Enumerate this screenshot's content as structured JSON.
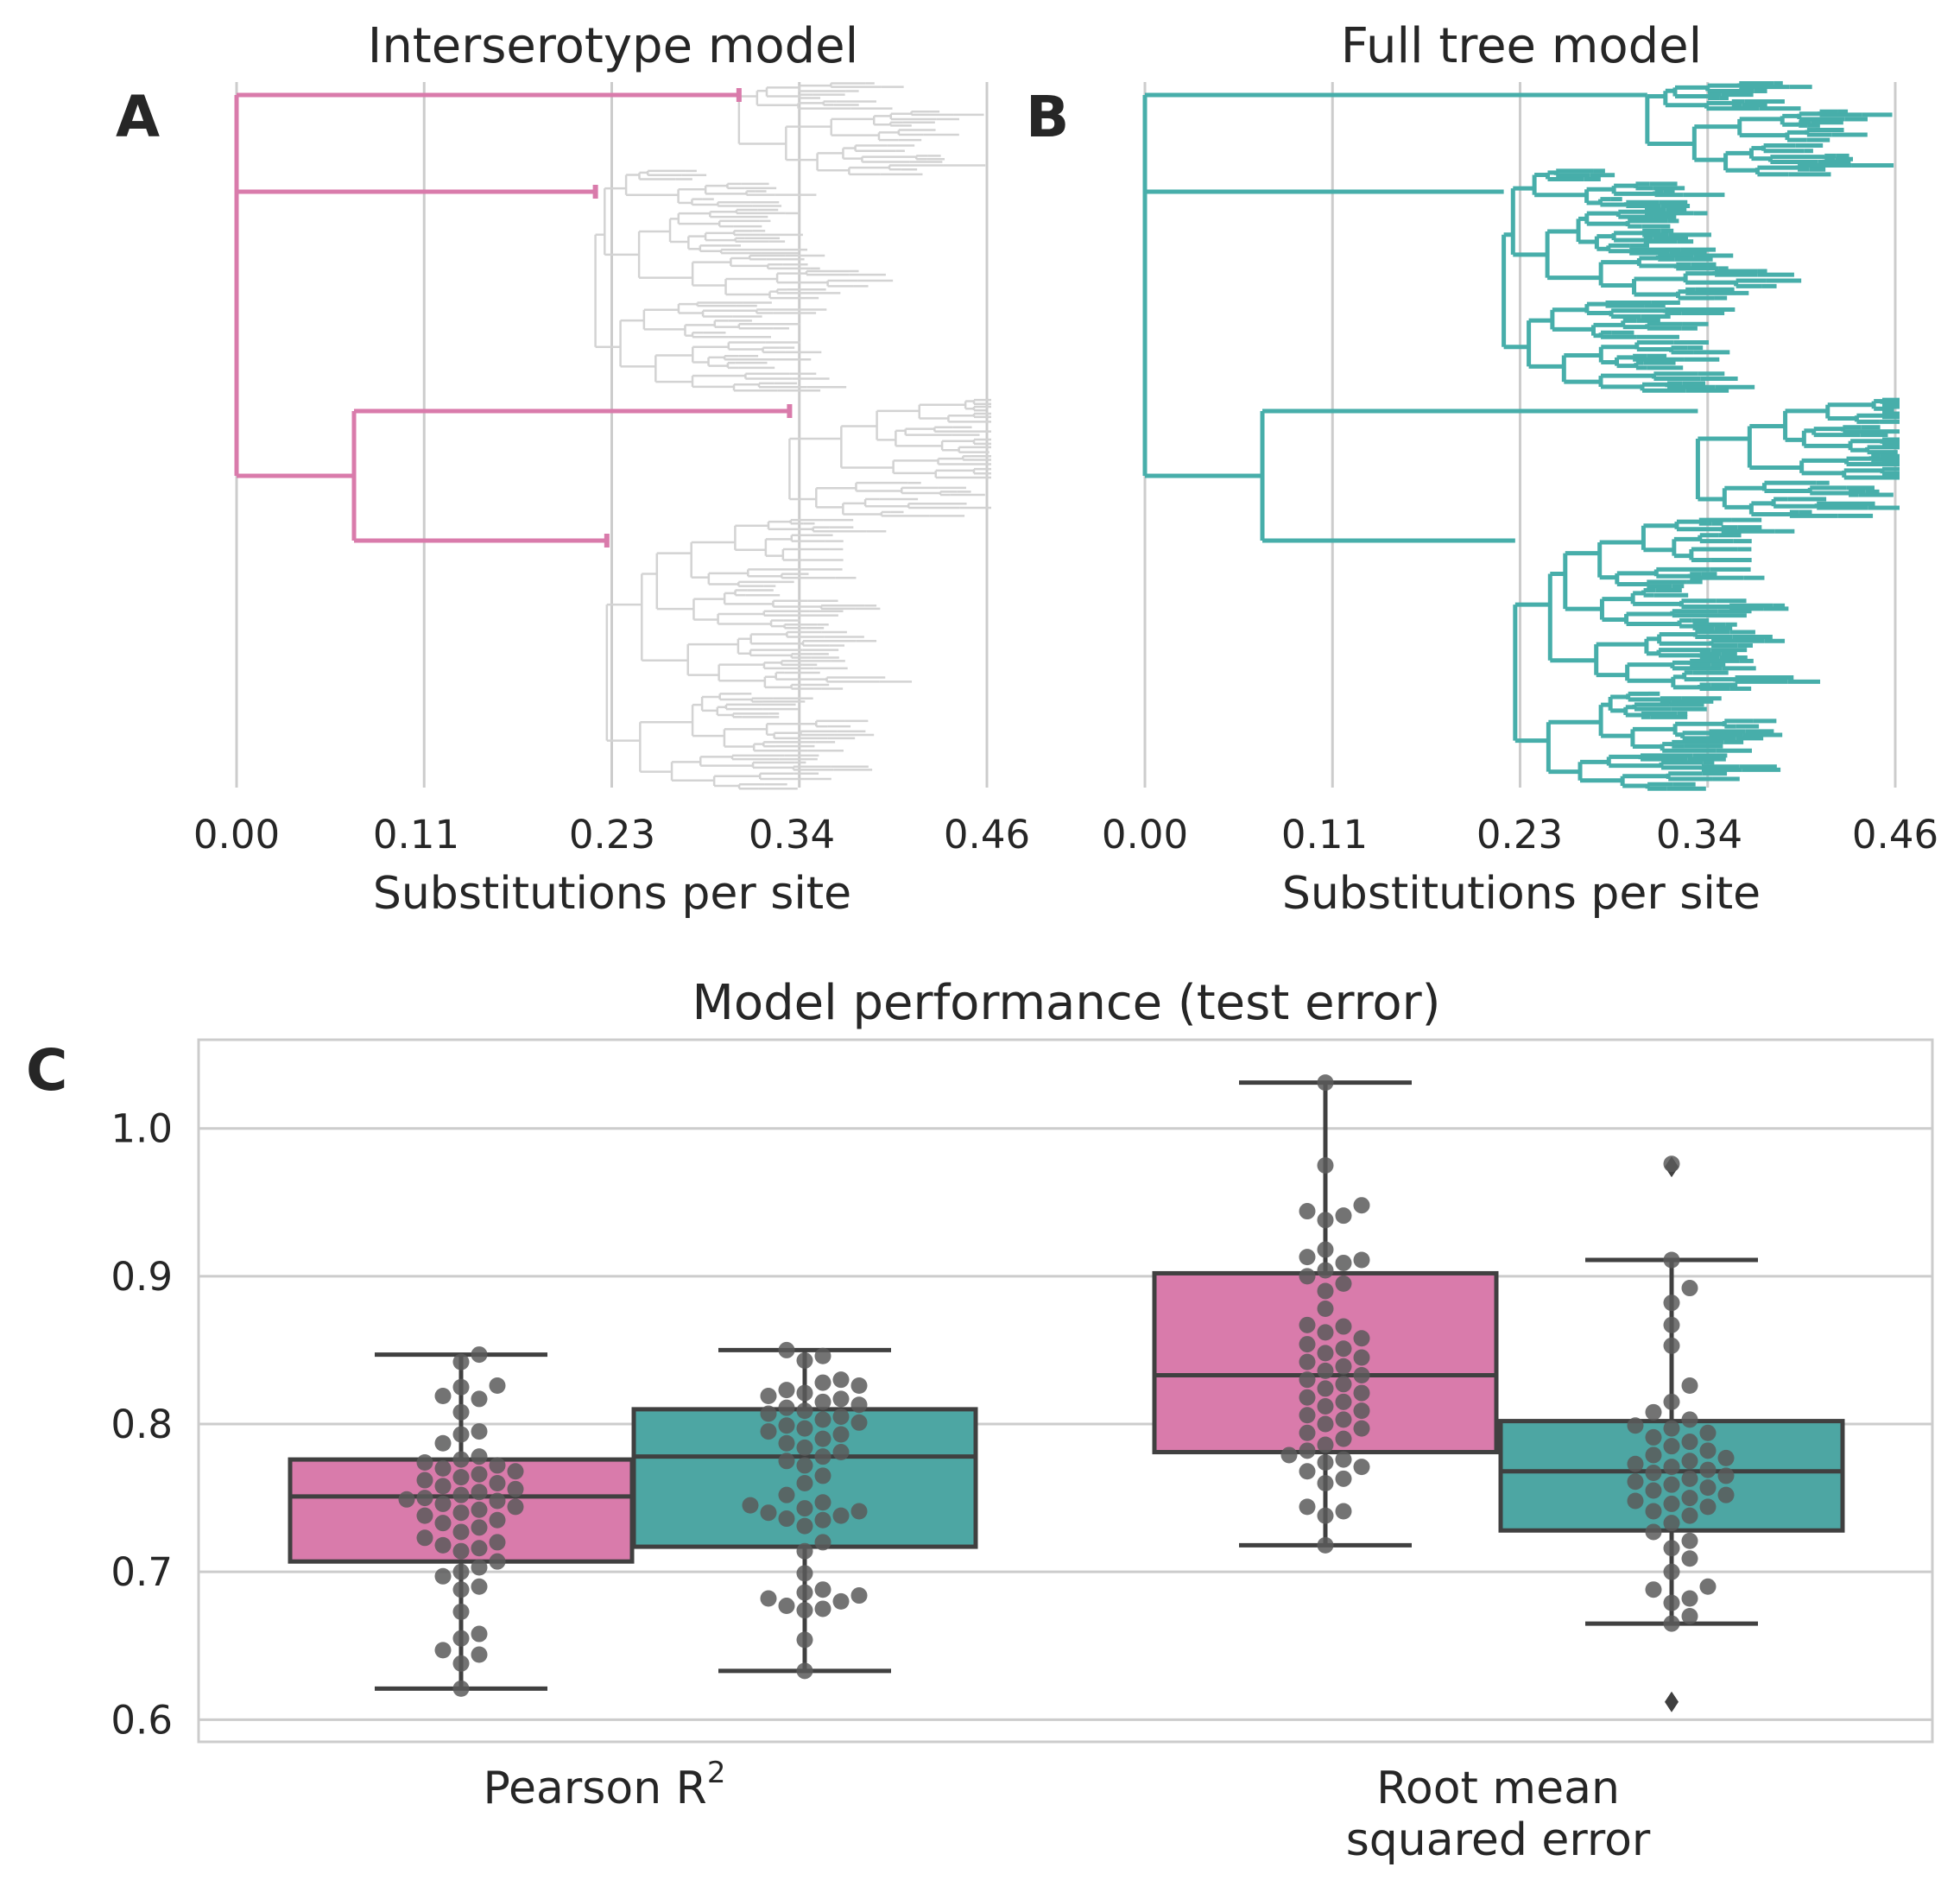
{
  "colors": {
    "interserotype": "#d97bab",
    "full_tree": "#47aeaa",
    "box_full_tree": "#4da6a3",
    "gray_tree": "#d3d3d3",
    "points": "#5a5a5a",
    "box_edge": "#404040",
    "grid": "#cccccc"
  },
  "panels": {
    "A": {
      "label": "A",
      "title": "Interserotype model",
      "xlabel": "Substitutions per site"
    },
    "B": {
      "label": "B",
      "title": "Full tree model",
      "xlabel": "Substitutions per site"
    },
    "C": {
      "label": "C",
      "title": "Model performance (test error)"
    }
  },
  "chart_data": [
    {
      "type": "tree",
      "panel": "A",
      "title": "Interserotype model",
      "xlabel": "Substitutions per site",
      "xticks": [
        "0.00",
        "0.11",
        "0.23",
        "0.34",
        "0.46"
      ],
      "xlim": [
        0,
        0.46
      ],
      "highlighted_branches": [
        {
          "from": 0.0,
          "to": 0.308
        },
        {
          "from": 0.0,
          "to": 0.22
        },
        {
          "from": 0.072,
          "to": 0.339
        },
        {
          "from": 0.072,
          "to": 0.227
        }
      ],
      "internal_node_x": 0.072,
      "grid": true
    },
    {
      "type": "tree",
      "panel": "B",
      "title": "Full tree model",
      "xlabel": "Substitutions per site",
      "xticks": [
        "0.00",
        "0.11",
        "0.23",
        "0.34",
        "0.46"
      ],
      "xlim": [
        0,
        0.46
      ],
      "grid": true
    },
    {
      "type": "box",
      "panel": "C",
      "title": "Model performance (test error)",
      "categories": [
        "Pearson R²",
        "Root mean squared error"
      ],
      "category_labels": [
        [
          "Pearson R",
          "2"
        ],
        [
          "Root mean",
          "squared error"
        ]
      ],
      "ylim": [
        0.585,
        1.06
      ],
      "yticks": [
        "0.6",
        "0.7",
        "0.8",
        "0.9",
        "1.0"
      ],
      "grid": true,
      "series": [
        {
          "model": "interserotype",
          "boxes": [
            {
              "q1": 0.707,
              "median": 0.751,
              "q3": 0.776,
              "whisker_low": 0.621,
              "whisker_high": 0.847,
              "outliers": [],
              "points": [
                0.621,
                0.638,
                0.644,
                0.647,
                0.655,
                0.658,
                0.673,
                0.688,
                0.69,
                0.697,
                0.7,
                0.703,
                0.707,
                0.714,
                0.716,
                0.718,
                0.72,
                0.723,
                0.727,
                0.73,
                0.733,
                0.735,
                0.738,
                0.74,
                0.742,
                0.744,
                0.746,
                0.748,
                0.749,
                0.75,
                0.752,
                0.754,
                0.756,
                0.758,
                0.76,
                0.762,
                0.764,
                0.766,
                0.768,
                0.77,
                0.772,
                0.774,
                0.776,
                0.778,
                0.787,
                0.793,
                0.795,
                0.808,
                0.817,
                0.819,
                0.825,
                0.826,
                0.842,
                0.847
              ]
            },
            {
              "q1": 0.781,
              "median": 0.833,
              "q3": 0.902,
              "whisker_low": 0.718,
              "whisker_high": 1.031,
              "outliers": [],
              "points": [
                0.718,
                0.738,
                0.741,
                0.744,
                0.76,
                0.763,
                0.768,
                0.771,
                0.774,
                0.776,
                0.779,
                0.782,
                0.786,
                0.79,
                0.794,
                0.797,
                0.8,
                0.803,
                0.806,
                0.809,
                0.812,
                0.815,
                0.818,
                0.821,
                0.824,
                0.827,
                0.83,
                0.833,
                0.836,
                0.839,
                0.842,
                0.845,
                0.848,
                0.851,
                0.854,
                0.858,
                0.862,
                0.866,
                0.867,
                0.878,
                0.89,
                0.895,
                0.9,
                0.904,
                0.909,
                0.911,
                0.913,
                0.918,
                0.938,
                0.941,
                0.944,
                0.948,
                0.975,
                1.031
              ]
            }
          ]
        },
        {
          "model": "full_tree",
          "boxes": [
            {
              "q1": 0.717,
              "median": 0.778,
              "q3": 0.81,
              "whisker_low": 0.633,
              "whisker_high": 0.85,
              "outliers": [],
              "points": [
                0.633,
                0.654,
                0.674,
                0.675,
                0.677,
                0.68,
                0.682,
                0.684,
                0.686,
                0.688,
                0.699,
                0.714,
                0.72,
                0.731,
                0.735,
                0.736,
                0.738,
                0.74,
                0.741,
                0.743,
                0.745,
                0.747,
                0.752,
                0.76,
                0.765,
                0.772,
                0.775,
                0.778,
                0.781,
                0.784,
                0.787,
                0.79,
                0.793,
                0.795,
                0.797,
                0.799,
                0.801,
                0.803,
                0.805,
                0.807,
                0.809,
                0.811,
                0.813,
                0.815,
                0.817,
                0.819,
                0.821,
                0.823,
                0.826,
                0.828,
                0.83,
                0.843,
                0.846,
                0.85
              ]
            },
            {
              "q1": 0.728,
              "median": 0.768,
              "q3": 0.802,
              "whisker_low": 0.665,
              "whisker_high": 0.911,
              "outliers": [
                0.612,
                0.974
              ],
              "points": [
                0.665,
                0.67,
                0.679,
                0.682,
                0.688,
                0.69,
                0.7,
                0.709,
                0.716,
                0.721,
                0.727,
                0.733,
                0.738,
                0.741,
                0.744,
                0.746,
                0.748,
                0.75,
                0.752,
                0.755,
                0.757,
                0.759,
                0.761,
                0.763,
                0.765,
                0.767,
                0.769,
                0.771,
                0.773,
                0.775,
                0.777,
                0.779,
                0.782,
                0.785,
                0.788,
                0.791,
                0.794,
                0.797,
                0.799,
                0.803,
                0.808,
                0.815,
                0.826,
                0.853,
                0.867,
                0.882,
                0.892,
                0.911,
                0.976
              ]
            }
          ]
        }
      ]
    }
  ]
}
